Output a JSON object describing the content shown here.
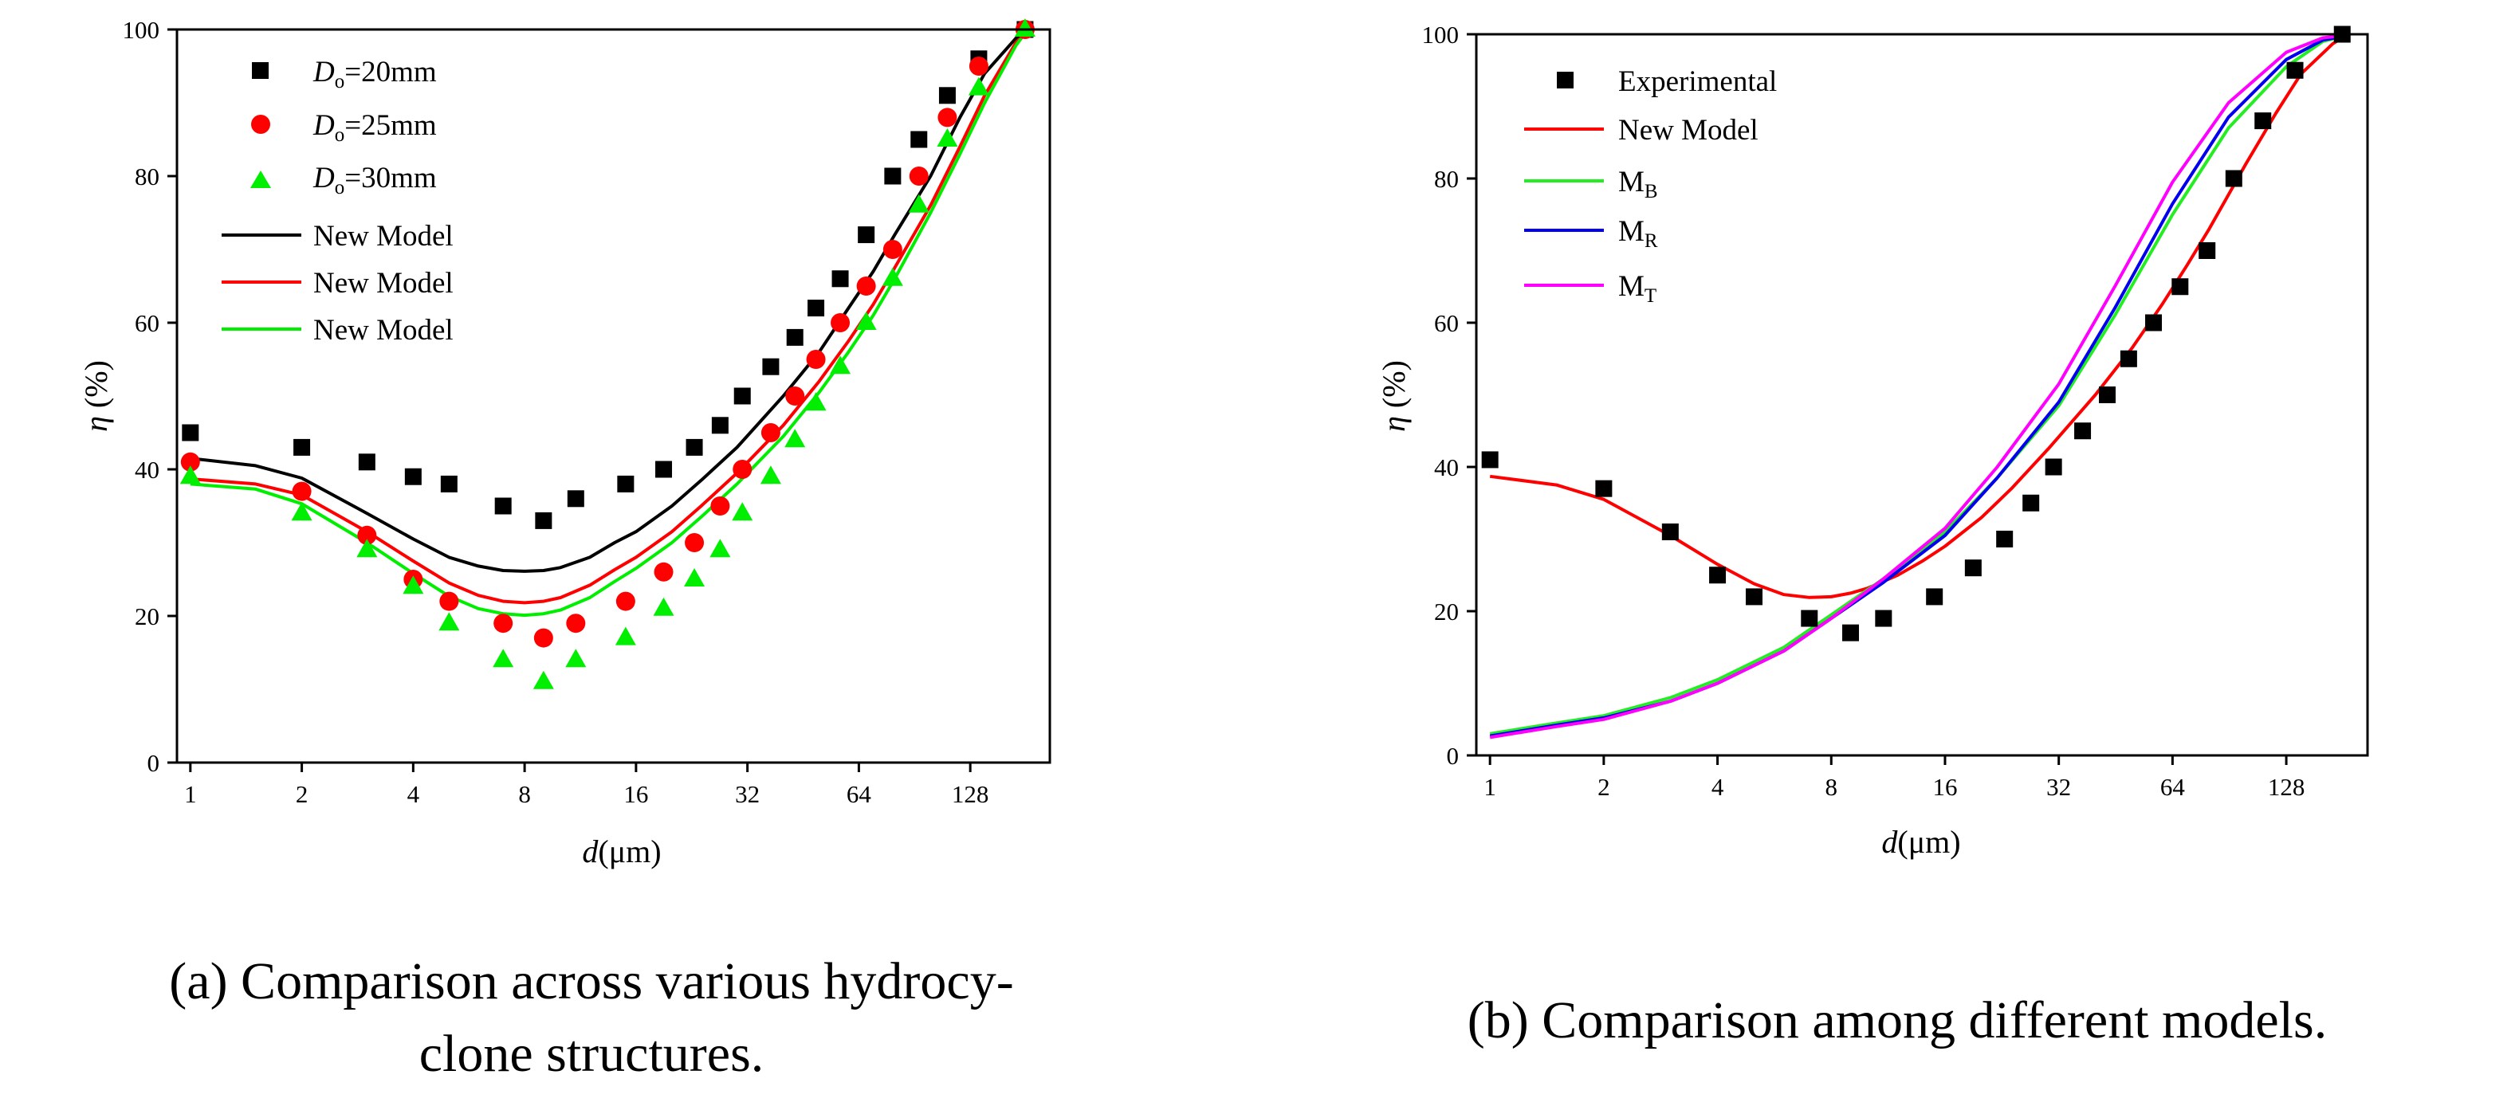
{
  "captions": {
    "a_line1": "(a) Comparison across various hydrocy-",
    "a_line2": "clone structures.",
    "b_line1": "(b) Comparison among different models."
  },
  "chart_data": [
    {
      "id": "a",
      "type": "scatter",
      "title": "",
      "xlabel_italic": "d",
      "xlabel_unit": "(μm)",
      "ylabel_italic": "η",
      "ylabel_unit": " (%)",
      "xscale": "log2",
      "xlim": [
        0.92,
        210
      ],
      "ylim": [
        0,
        100
      ],
      "xticks": [
        1,
        2,
        4,
        8,
        16,
        32,
        64,
        128
      ],
      "xticklabels": [
        "1",
        "2",
        "4",
        "8",
        "16",
        "32",
        "64",
        "128"
      ],
      "yticks": [
        0,
        20,
        40,
        60,
        80,
        100
      ],
      "yticklabels": [
        "0",
        "20",
        "40",
        "60",
        "80",
        "100"
      ],
      "legend_position": "top-left",
      "series": [
        {
          "name": "Do=20mm",
          "name_italic": "D",
          "name_sub": "o",
          "name_rest": "=20mm",
          "kind": "points",
          "marker": "square",
          "color": "#000000",
          "x": [
            1,
            2,
            3,
            4,
            5,
            7,
            9,
            11,
            15,
            19,
            23,
            27,
            31,
            37,
            43,
            49,
            57,
            67,
            79,
            93,
            111,
            135,
            180
          ],
          "y": [
            45,
            43,
            41,
            39,
            38,
            35,
            33,
            36,
            38,
            40,
            43,
            46,
            50,
            54,
            58,
            62,
            66,
            72,
            80,
            85,
            91,
            96,
            100
          ]
        },
        {
          "name": "Do=25mm",
          "name_italic": "D",
          "name_sub": "o",
          "name_rest": "=25mm",
          "kind": "points",
          "marker": "circle",
          "color": "#ff0000",
          "x": [
            1,
            2,
            3,
            4,
            5,
            7,
            9,
            11,
            15,
            19,
            23,
            27,
            31,
            37,
            43,
            49,
            57,
            67,
            79,
            93,
            111,
            135,
            180
          ],
          "y": [
            41,
            37,
            31,
            25,
            22,
            19,
            17,
            19,
            22,
            26,
            30,
            35,
            40,
            45,
            50,
            55,
            60,
            65,
            70,
            80,
            88,
            95,
            100
          ]
        },
        {
          "name": "Do=30mm",
          "name_italic": "D",
          "name_sub": "o",
          "name_rest": "=30mm",
          "kind": "points",
          "marker": "triangle",
          "color": "#00ee00",
          "x": [
            1,
            2,
            3,
            4,
            5,
            7,
            9,
            11,
            15,
            19,
            23,
            27,
            31,
            37,
            43,
            49,
            57,
            67,
            79,
            93,
            111,
            135,
            180
          ],
          "y": [
            39,
            34,
            29,
            24,
            19,
            14,
            11,
            14,
            17,
            21,
            25,
            29,
            34,
            39,
            44,
            49,
            54,
            60,
            66,
            76,
            85,
            92,
            100
          ]
        },
        {
          "name": "New Model",
          "kind": "line",
          "color": "#000000",
          "x": [
            1,
            1.5,
            2,
            3,
            4,
            5,
            6,
            7,
            8,
            9,
            10,
            12,
            14,
            16,
            20,
            24,
            30,
            40,
            50,
            60,
            70,
            80,
            100,
            120,
            140,
            170,
            180
          ],
          "y": [
            41.5,
            40.5,
            38.8,
            34,
            30.5,
            28,
            26.8,
            26.2,
            26.1,
            26.2,
            26.6,
            28,
            30,
            31.5,
            35,
            38.5,
            43,
            50,
            56,
            62,
            67,
            72,
            80,
            88,
            94,
            98.8,
            99.5
          ]
        },
        {
          "name": "New Model",
          "kind": "line",
          "color": "#ff0000",
          "x": [
            1,
            1.5,
            2,
            3,
            4,
            5,
            6,
            7,
            8,
            9,
            10,
            12,
            14,
            16,
            20,
            24,
            30,
            40,
            50,
            60,
            70,
            80,
            100,
            120,
            140,
            170,
            180
          ],
          "y": [
            38.7,
            38,
            36.5,
            31.5,
            27.5,
            24.5,
            22.8,
            22,
            21.8,
            22,
            22.5,
            24.2,
            26.3,
            28,
            31.5,
            35,
            39.5,
            46,
            52,
            57.5,
            62.5,
            67.5,
            76,
            84,
            91,
            98.2,
            99.5
          ]
        },
        {
          "name": "New Model",
          "kind": "line",
          "color": "#00ee00",
          "x": [
            1,
            1.5,
            2,
            3,
            4,
            5,
            6,
            7,
            8,
            9,
            10,
            12,
            14,
            16,
            20,
            24,
            30,
            40,
            50,
            60,
            70,
            80,
            100,
            120,
            140,
            170,
            180
          ],
          "y": [
            38,
            37.3,
            35.3,
            30,
            25.8,
            22.7,
            21,
            20.3,
            20.1,
            20.3,
            20.8,
            22.5,
            24.7,
            26.5,
            30,
            33.5,
            38,
            44.5,
            50.5,
            56,
            61,
            66,
            75,
            83,
            90,
            97.8,
            99.5
          ]
        }
      ]
    },
    {
      "id": "b",
      "type": "scatter",
      "title": "",
      "xlabel_italic": "d",
      "xlabel_unit": "(μm)",
      "ylabel_italic": "η",
      "ylabel_unit": " (%)",
      "xscale": "log2",
      "xlim": [
        0.92,
        210
      ],
      "ylim": [
        0,
        100
      ],
      "xticks": [
        1,
        2,
        4,
        8,
        16,
        32,
        64,
        128
      ],
      "xticklabels": [
        "1",
        "2",
        "4",
        "8",
        "16",
        "32",
        "64",
        "128"
      ],
      "yticks": [
        0,
        20,
        40,
        60,
        80,
        100
      ],
      "yticklabels": [
        "0",
        "20",
        "40",
        "60",
        "80",
        "100"
      ],
      "legend_position": "top-left",
      "series": [
        {
          "name": "Experimental",
          "kind": "points",
          "marker": "square",
          "color": "#000000",
          "x": [
            1,
            2,
            3,
            4,
            5,
            7,
            9,
            11,
            15,
            19,
            23,
            27,
            31,
            37,
            43,
            49,
            57,
            67,
            79,
            93,
            111,
            135,
            180
          ],
          "y": [
            41,
            37,
            31,
            25,
            22,
            19,
            17,
            19,
            22,
            26,
            30,
            35,
            40,
            45,
            50,
            55,
            60,
            65,
            70,
            80,
            88,
            95,
            100
          ]
        },
        {
          "name": "New Model",
          "kind": "line",
          "color": "#ff0000",
          "x": [
            1,
            1.5,
            2,
            3,
            4,
            5,
            6,
            7,
            8,
            9,
            10,
            12,
            14,
            16,
            20,
            24,
            30,
            40,
            50,
            60,
            70,
            80,
            100,
            120,
            140,
            170,
            180
          ],
          "y": [
            38.7,
            37.5,
            35.5,
            30.5,
            26.5,
            23.8,
            22.3,
            21.9,
            22,
            22.5,
            23.2,
            25,
            27,
            29,
            33,
            37,
            42.5,
            50,
            56.5,
            62.5,
            68,
            73,
            82,
            89,
            94.5,
            98.7,
            99.5
          ]
        },
        {
          "name": "MB",
          "name_base": "M",
          "name_sub": "B",
          "kind": "line",
          "color": "#22ee22",
          "x": [
            1,
            1.5,
            2,
            3,
            4,
            6,
            8,
            11,
            16,
            22,
            32,
            45,
            64,
            90,
            128,
            160,
            180
          ],
          "y": [
            3,
            4.5,
            5.5,
            8,
            10.5,
            15,
            19.5,
            24.5,
            31,
            38.5,
            48.5,
            61,
            75,
            87,
            95.5,
            99,
            99.7
          ]
        },
        {
          "name": "MR",
          "name_base": "M",
          "name_sub": "R",
          "kind": "line",
          "color": "#0000ee",
          "x": [
            1,
            1.5,
            2,
            3,
            4,
            6,
            8,
            11,
            16,
            22,
            32,
            45,
            64,
            90,
            128,
            160,
            180
          ],
          "y": [
            2.7,
            4.2,
            5.2,
            7.5,
            10,
            14.5,
            19,
            24,
            30.5,
            38.5,
            49,
            62,
            76.5,
            88.5,
            96.5,
            99.2,
            99.7
          ]
        },
        {
          "name": "MT",
          "name_base": "M",
          "name_sub": "T",
          "kind": "line",
          "color": "#ff00ff",
          "x": [
            1,
            1.5,
            2,
            3,
            4,
            6,
            8,
            11,
            16,
            22,
            32,
            45,
            64,
            90,
            128,
            160,
            180
          ],
          "y": [
            2.5,
            4,
            5,
            7.5,
            10,
            14.5,
            19,
            24.5,
            31.5,
            40,
            51.5,
            65,
            79.5,
            90.5,
            97.5,
            99.5,
            99.8
          ]
        }
      ]
    }
  ]
}
